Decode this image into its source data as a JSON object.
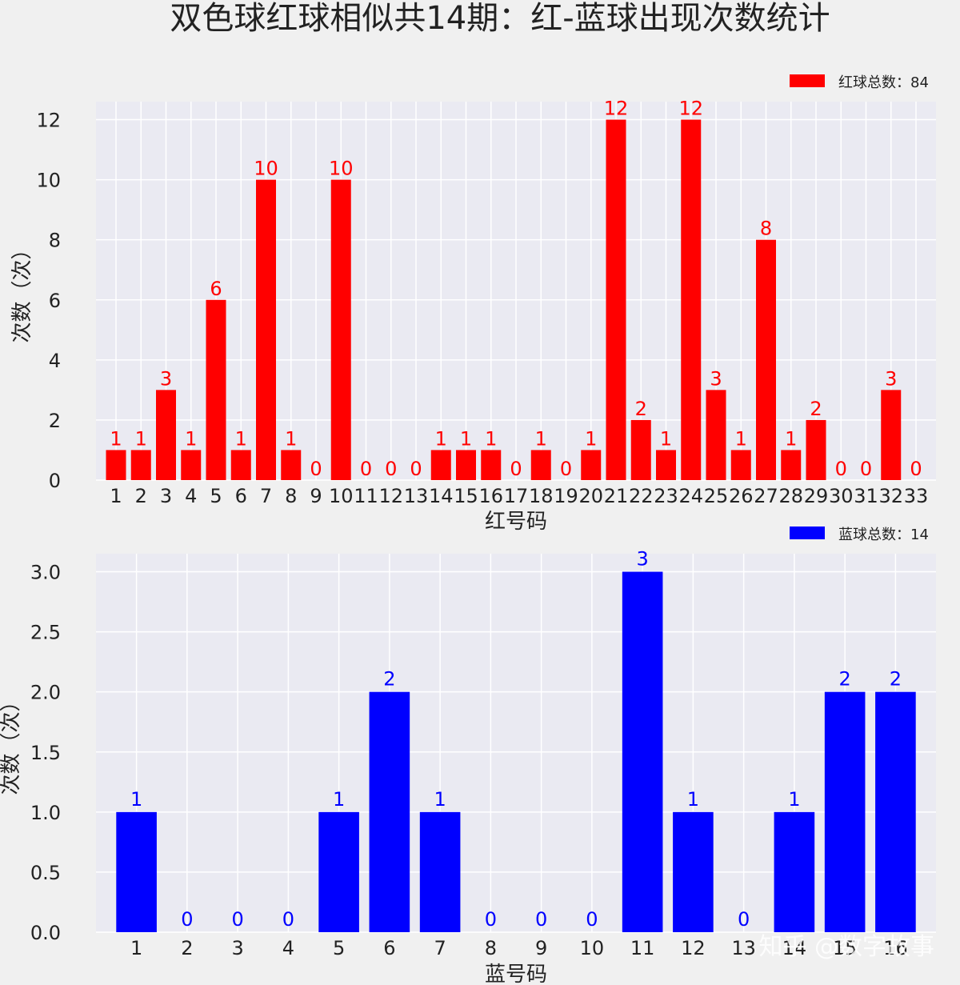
{
  "title": "双色球红球相似共14期：红-蓝球出现次数统计",
  "watermark": "知乎 @数字故事",
  "chart_data": [
    {
      "type": "bar",
      "xlabel": "红号码",
      "ylabel": "次数（次）",
      "legend": "红球总数：84",
      "legend_position": "top-right",
      "color": "#ff0000",
      "grid": true,
      "ylim": [
        0,
        12.6
      ],
      "yticks": [
        "0",
        "2",
        "4",
        "6",
        "8",
        "10",
        "12"
      ],
      "categories": [
        "1",
        "2",
        "3",
        "4",
        "5",
        "6",
        "7",
        "8",
        "9",
        "10",
        "11",
        "12",
        "13",
        "14",
        "15",
        "16",
        "17",
        "18",
        "19",
        "20",
        "21",
        "22",
        "23",
        "24",
        "25",
        "26",
        "27",
        "28",
        "29",
        "30",
        "31",
        "32",
        "33"
      ],
      "values": [
        1,
        1,
        3,
        1,
        6,
        1,
        10,
        1,
        0,
        10,
        0,
        0,
        0,
        1,
        1,
        1,
        0,
        1,
        0,
        1,
        12,
        2,
        1,
        12,
        3,
        1,
        8,
        1,
        2,
        0,
        0,
        3,
        0
      ]
    },
    {
      "type": "bar",
      "xlabel": "蓝号码",
      "ylabel": "次数（次）",
      "legend": "蓝球总数：14",
      "legend_position": "top-right",
      "color": "#0000ff",
      "grid": true,
      "ylim": [
        0,
        3.15
      ],
      "yticks": [
        "0.0",
        "0.5",
        "1.0",
        "1.5",
        "2.0",
        "2.5",
        "3.0"
      ],
      "categories": [
        "1",
        "2",
        "3",
        "4",
        "5",
        "6",
        "7",
        "8",
        "9",
        "10",
        "11",
        "12",
        "13",
        "14",
        "15",
        "16"
      ],
      "values": [
        1,
        0,
        0,
        0,
        1,
        2,
        1,
        0,
        0,
        0,
        3,
        1,
        0,
        1,
        2,
        2
      ]
    }
  ]
}
